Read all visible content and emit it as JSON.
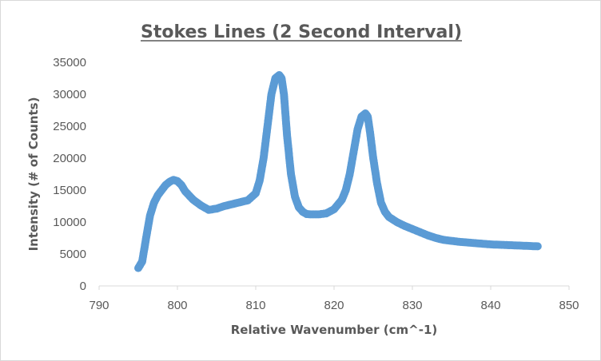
{
  "chart_data": {
    "type": "scatter",
    "title": "Stokes Lines (2 Second Interval)",
    "xlabel": "Relative Wavenumber (cm^-1)",
    "ylabel": "Intensity (# of Counts)",
    "xlim": [
      790,
      850
    ],
    "ylim": [
      0,
      35000
    ],
    "x_ticks": [
      "790",
      "800",
      "810",
      "820",
      "830",
      "840",
      "850"
    ],
    "y_ticks": [
      "0",
      "5000",
      "10000",
      "15000",
      "20000",
      "25000",
      "30000",
      "35000"
    ],
    "grid": false,
    "legend": "none",
    "series_color": "#5b9bd5",
    "series": [
      {
        "x": [
          795,
          795.5,
          796,
          796.5,
          797,
          797.5,
          798,
          798.5,
          799,
          799.5,
          800,
          800.5,
          801,
          802,
          803,
          804,
          805,
          806,
          807,
          808,
          809,
          810,
          810.5,
          811,
          811.5,
          812,
          812.5,
          813,
          813.3,
          813.6,
          814,
          814.5,
          815,
          815.5,
          816,
          816.5,
          817,
          818,
          819,
          820,
          821,
          821.5,
          822,
          822.5,
          823,
          823.5,
          824,
          824.3,
          824.6,
          825,
          825.5,
          826,
          826.5,
          827,
          828,
          829,
          830,
          831,
          832,
          833,
          834,
          835,
          836,
          837,
          838,
          839,
          840,
          841,
          842,
          843,
          844,
          845,
          846
        ],
        "y": [
          2800,
          3800,
          7500,
          11000,
          13000,
          14200,
          15000,
          15800,
          16300,
          16600,
          16400,
          15800,
          14800,
          13500,
          12600,
          11900,
          12100,
          12500,
          12800,
          13100,
          13400,
          14500,
          16500,
          20000,
          25000,
          30000,
          32500,
          33000,
          32500,
          30000,
          23500,
          17500,
          14000,
          12300,
          11600,
          11250,
          11200,
          11200,
          11350,
          12000,
          13500,
          15000,
          17500,
          21000,
          24500,
          26500,
          27000,
          26500,
          24000,
          20000,
          16000,
          13000,
          11600,
          10800,
          10000,
          9400,
          8900,
          8400,
          7900,
          7500,
          7200,
          7050,
          6900,
          6800,
          6700,
          6600,
          6500,
          6450,
          6400,
          6350,
          6300,
          6250,
          6200
        ]
      }
    ]
  }
}
